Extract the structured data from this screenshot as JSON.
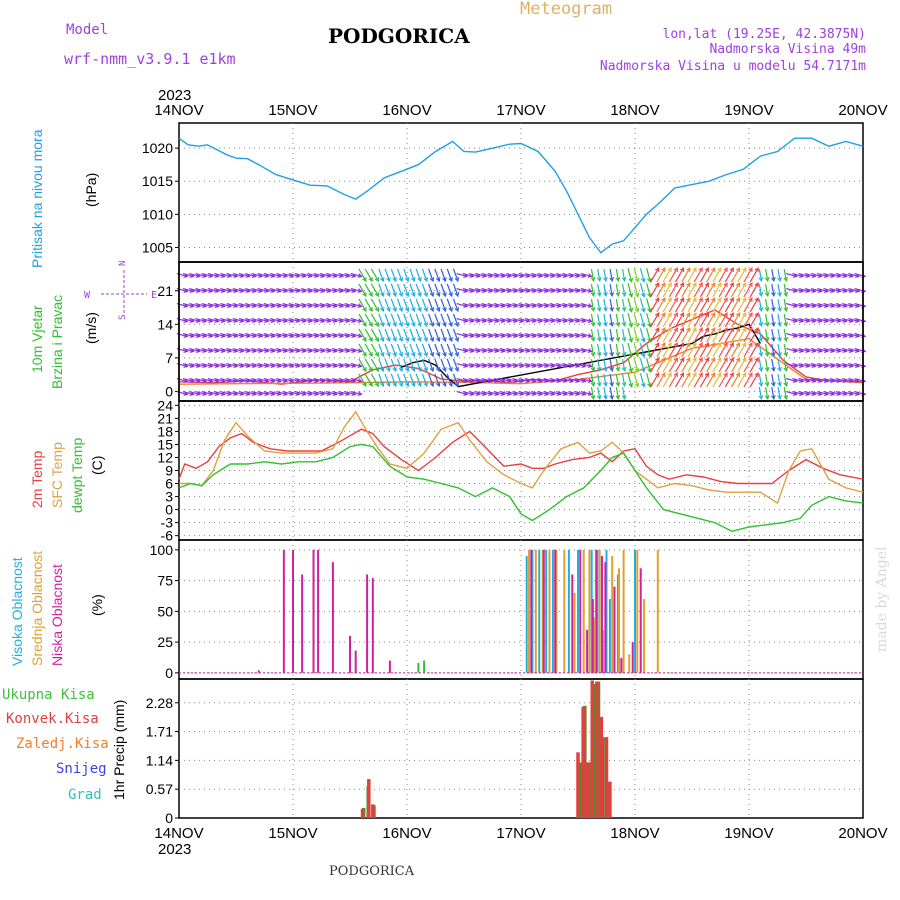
{
  "header": {
    "model_label": "Model",
    "model_name": "wrf-nmm_v3.9.1 e1km",
    "station": "PODGORICA",
    "product": "Meteogram",
    "lonlat": "lon,lat (19.25E, 42.3875N)",
    "elevation": "Nadmorska Visina 49m",
    "model_elevation": "Nadmorska Visina u modelu 54.7171m",
    "footer_station": "PODGORICA",
    "credit": "made by Angel"
  },
  "colors": {
    "purple": "#a040e0",
    "pressure": "#1ea0e6",
    "t2m": "#e84040",
    "sfc": "#e0a040",
    "dew": "#30c030",
    "high_cloud": "#20b0e0",
    "mid_cloud": "#e0a030",
    "low_cloud": "#d020a0",
    "total_precip": "#40c040",
    "conv_precip": "#e04040",
    "frozen": "#f08030",
    "snow": "#4040e0",
    "grad": "#30c0c0",
    "precip_bar": "#5a8a28",
    "meteo_title": "#e0b060"
  },
  "time_axis": {
    "year": "2023",
    "ticks": [
      "14NOV",
      "15NOV",
      "16NOV",
      "17NOV",
      "18NOV",
      "19NOV",
      "20NOV"
    ]
  },
  "chart_data": [
    {
      "type": "line",
      "id": "pressure",
      "ylabel": [
        "Pritisak na nivou mora",
        "(hPa)"
      ],
      "yticks": [
        1005,
        1010,
        1015,
        1020
      ],
      "ylim": [
        1002.8,
        1023.8
      ],
      "grid": true,
      "series": [
        {
          "color_key": "pressure",
          "x": [
            0,
            0.08,
            0.17,
            0.25,
            0.33,
            0.42,
            0.5,
            0.6,
            0.7,
            0.85,
            1.0,
            1.15,
            1.3,
            1.45,
            1.55,
            1.65,
            1.8,
            1.95,
            2.1,
            2.25,
            2.4,
            2.5,
            2.6,
            2.75,
            2.9,
            3.0,
            3.15,
            3.3,
            3.4,
            3.5,
            3.6,
            3.7,
            3.8,
            3.9,
            4.0,
            4.1,
            4.2,
            4.35,
            4.5,
            4.65,
            4.8,
            4.95,
            5.1,
            5.25,
            5.4,
            5.55,
            5.7,
            5.85,
            6.0
          ],
          "y": [
            1021.5,
            1020.5,
            1020.3,
            1020.5,
            1019.8,
            1019.0,
            1018.5,
            1018.4,
            1017.5,
            1016.0,
            1015.2,
            1014.4,
            1014.3,
            1013.0,
            1012.3,
            1013.5,
            1015.5,
            1016.5,
            1017.5,
            1019.5,
            1021.0,
            1019.5,
            1019.4,
            1020.0,
            1020.6,
            1020.7,
            1019.5,
            1016.5,
            1013.5,
            1010.0,
            1006.5,
            1004.2,
            1005.5,
            1006.0,
            1008.0,
            1010.0,
            1011.5,
            1014.0,
            1014.5,
            1015.0,
            1016.0,
            1016.8,
            1018.8,
            1019.5,
            1021.5,
            1021.5,
            1020.3,
            1021.0,
            1020.3
          ]
        }
      ]
    },
    {
      "type": "line",
      "id": "wind",
      "ylabel": [
        "10m Vjetar",
        "Brzina i Pravac",
        "(m/s)"
      ],
      "compass": {
        "n": "N",
        "s": "S",
        "e": "E",
        "w": "W"
      },
      "yticks": [
        0,
        7,
        14,
        21
      ],
      "ylim": [
        -2,
        27
      ],
      "grid": true,
      "series": [
        {
          "color_key": "t2m",
          "x": [
            0,
            0.3,
            0.6,
            0.9,
            1.2,
            1.5,
            1.7,
            1.9,
            2.1,
            2.3,
            2.5,
            2.7,
            2.9,
            3.1,
            3.3,
            3.5,
            3.7,
            3.9,
            4.1,
            4.3,
            4.5,
            4.7,
            4.9,
            5.1,
            5.3,
            5.5,
            5.7,
            6.0
          ],
          "y": [
            2,
            1.8,
            2.2,
            1.5,
            2.4,
            2.0,
            4.5,
            5.5,
            4.8,
            2.6,
            2.1,
            2.3,
            1.8,
            2.5,
            2.2,
            3.5,
            4.5,
            6.0,
            10.0,
            13.0,
            15.0,
            17.0,
            14.0,
            12.0,
            6.5,
            3.0,
            2.2,
            2.0
          ]
        },
        {
          "color_key": "frozen",
          "x": [
            0,
            0.5,
            1.0,
            1.5,
            2.0,
            2.5,
            3.0,
            3.5,
            4.0,
            4.5,
            5.0,
            5.5,
            6.0
          ],
          "y": [
            1.5,
            1.6,
            1.7,
            1.8,
            2.0,
            1.9,
            1.6,
            2.5,
            4.0,
            9.0,
            11.0,
            2.5,
            1.8
          ]
        },
        {
          "color_key": "black",
          "x": [
            1.95,
            2.05,
            2.15,
            2.25,
            2.35,
            2.45,
            4.5,
            4.6,
            4.7,
            4.8,
            4.9,
            5.0,
            5.1
          ],
          "y": [
            5.0,
            6.0,
            6.5,
            5.5,
            3.0,
            1.0,
            10.0,
            11.5,
            12.0,
            12.8,
            13.2,
            14.0,
            10.0
          ]
        }
      ]
    },
    {
      "type": "line",
      "id": "temperature",
      "ylabel": [
        "2m Temp",
        "SFC Temp",
        "dewpt Temp",
        "(C)"
      ],
      "yticks": [
        -6,
        -3,
        0,
        3,
        6,
        9,
        12,
        15,
        18,
        21,
        24
      ],
      "ylim": [
        -7,
        25
      ],
      "grid": true,
      "series": [
        {
          "name": "2m Temp",
          "color_key": "t2m",
          "x": [
            0,
            0.05,
            0.15,
            0.25,
            0.35,
            0.45,
            0.55,
            0.65,
            0.8,
            0.95,
            1.1,
            1.25,
            1.4,
            1.5,
            1.6,
            1.7,
            1.8,
            1.95,
            2.1,
            2.25,
            2.4,
            2.55,
            2.7,
            2.85,
            3.0,
            3.1,
            3.2,
            3.3,
            3.45,
            3.6,
            3.7,
            3.8,
            3.9,
            4.0,
            4.1,
            4.2,
            4.3,
            4.45,
            4.6,
            4.75,
            4.9,
            5.05,
            5.2,
            5.35,
            5.5,
            5.65,
            5.8,
            6.0
          ],
          "y": [
            7,
            10.5,
            9.5,
            11,
            14.5,
            16.5,
            17.5,
            15.5,
            14,
            13.5,
            13.5,
            13.5,
            15.5,
            17,
            18.5,
            17.5,
            14.5,
            11.5,
            9,
            12,
            15.5,
            18,
            14,
            10,
            10.5,
            9.5,
            9.5,
            10.5,
            11.5,
            12,
            13,
            11,
            13.5,
            14,
            10,
            8,
            7,
            8,
            7.5,
            6.5,
            6,
            6,
            6,
            9,
            11.5,
            9.5,
            8,
            7
          ]
        },
        {
          "name": "SFC Temp",
          "color_key": "sfc",
          "x": [
            0,
            0.1,
            0.2,
            0.3,
            0.4,
            0.5,
            0.6,
            0.75,
            0.9,
            1.05,
            1.2,
            1.35,
            1.45,
            1.55,
            1.65,
            1.75,
            1.85,
            2.0,
            2.15,
            2.3,
            2.45,
            2.55,
            2.7,
            2.85,
            3.0,
            3.1,
            3.2,
            3.35,
            3.5,
            3.6,
            3.7,
            3.8,
            3.9,
            4.0,
            4.1,
            4.2,
            4.35,
            4.5,
            4.65,
            4.8,
            4.95,
            5.1,
            5.25,
            5.35,
            5.45,
            5.55,
            5.7,
            5.85,
            6.0
          ],
          "y": [
            6,
            6,
            5.5,
            9,
            16,
            20,
            17,
            13.5,
            13,
            13,
            13,
            14,
            19,
            22.5,
            18,
            14,
            10.5,
            9.5,
            13,
            18.5,
            20,
            16,
            11,
            8,
            6,
            5,
            9,
            14,
            15.5,
            13,
            13.5,
            15.5,
            13,
            9,
            7,
            5,
            6,
            5.5,
            4.5,
            4,
            4,
            4,
            1.5,
            9,
            13.5,
            14,
            7,
            5,
            4
          ]
        },
        {
          "name": "dewpt Temp",
          "color_key": "dew",
          "x": [
            0,
            0.1,
            0.2,
            0.3,
            0.45,
            0.6,
            0.75,
            0.9,
            1.05,
            1.2,
            1.35,
            1.5,
            1.6,
            1.7,
            1.85,
            2.0,
            2.15,
            2.3,
            2.45,
            2.6,
            2.75,
            2.9,
            3.0,
            3.1,
            3.25,
            3.4,
            3.55,
            3.7,
            3.8,
            3.9,
            4.0,
            4.1,
            4.25,
            4.4,
            4.55,
            4.7,
            4.85,
            5.0,
            5.15,
            5.3,
            5.45,
            5.55,
            5.7,
            5.85,
            6.0
          ],
          "y": [
            5,
            6,
            5.5,
            8,
            10.5,
            10.5,
            11,
            10.5,
            11,
            11,
            12,
            14.5,
            15,
            14.5,
            10,
            7.5,
            7,
            6,
            5,
            3,
            5,
            3,
            -1,
            -2.5,
            0,
            3,
            5,
            9,
            12,
            13,
            9,
            5,
            0,
            -1,
            -2,
            -3,
            -5,
            -4,
            -3.5,
            -3,
            -2,
            1,
            3,
            2,
            1.5
          ]
        }
      ]
    },
    {
      "type": "bar",
      "id": "cloud",
      "ylabel": [
        "Visoka Oblacnost",
        "Srednja Oblacnost",
        "Niska Oblacnost",
        "(%)"
      ],
      "yticks": [
        0,
        25,
        50,
        75,
        100
      ],
      "ylim": [
        -5,
        108
      ],
      "grid": true,
      "series": [
        {
          "name": "Visoka Oblacnost",
          "color_key": "high_cloud",
          "x": [
            3.05,
            3.1,
            3.16,
            3.22,
            3.28,
            3.42,
            3.5,
            3.62,
            3.67,
            3.75,
            3.78,
            3.85,
            4.0
          ],
          "y": [
            95,
            100,
            100,
            100,
            100,
            100,
            100,
            100,
            100,
            100,
            60,
            80,
            100
          ]
        },
        {
          "name": "Srednja Oblacnost",
          "color_key": "mid_cloud",
          "x": [
            3.07,
            3.13,
            3.19,
            3.25,
            3.31,
            3.38,
            3.47,
            3.55,
            3.6,
            3.64,
            3.69,
            3.72,
            3.8,
            3.86,
            3.9,
            3.95,
            4.02,
            4.08,
            4.2
          ],
          "y": [
            100,
            100,
            100,
            100,
            100,
            100,
            65,
            100,
            100,
            45,
            100,
            35,
            95,
            85,
            100,
            15,
            100,
            60,
            100
          ]
        },
        {
          "name": "Niska Oblacnost",
          "color_key": "low_cloud",
          "x": [
            0.7,
            0.92,
            1.0,
            1.08,
            1.18,
            1.22,
            1.35,
            1.5,
            1.55,
            1.65,
            1.7,
            1.85,
            3.09,
            3.2,
            3.3,
            3.45,
            3.52,
            3.58,
            3.63,
            3.66,
            3.71,
            3.74,
            3.82,
            3.88,
            3.98,
            4.05
          ],
          "y": [
            2,
            100,
            100,
            80,
            100,
            100,
            90,
            30,
            18,
            80,
            77,
            10,
            100,
            100,
            100,
            80,
            100,
            35,
            60,
            100,
            95,
            90,
            70,
            12,
            25,
            85
          ]
        },
        {
          "name": "Grad",
          "color_key": "dew",
          "x": [
            2.1,
            2.15
          ],
          "y": [
            8,
            10
          ]
        }
      ]
    },
    {
      "type": "bar",
      "id": "precip",
      "ylabel": [
        "1hr Precip (mm)"
      ],
      "legend": [
        "Ukupna Kisa",
        "Konvek.Kisa",
        "Zaledj.Kisa",
        "Snijeg",
        "Grad"
      ],
      "yticks": [
        0,
        0.57,
        1.14,
        1.71,
        2.28
      ],
      "ylim": [
        0,
        2.75
      ],
      "grid": true,
      "series": [
        {
          "name": "Ukupna Kisa",
          "color_key": "precip_bar",
          "x": [
            1.62,
            1.66,
            1.7,
            3.52,
            3.56,
            3.6,
            3.64,
            3.68,
            3.72,
            3.77
          ],
          "y": [
            0.2,
            0.63,
            0.27,
            1.1,
            2.22,
            1.1,
            2.65,
            2.7,
            1.6,
            0.7
          ]
        },
        {
          "name": "Konvek.Kisa",
          "color_key": "conv_precip",
          "x": [
            1.61,
            1.665,
            1.71,
            3.5,
            3.545,
            3.585,
            3.625,
            3.665,
            3.705,
            3.75,
            3.78
          ],
          "y": [
            0.18,
            0.77,
            0.25,
            1.3,
            2.2,
            1.1,
            2.72,
            2.7,
            2.0,
            1.6,
            0.72
          ]
        }
      ]
    }
  ]
}
